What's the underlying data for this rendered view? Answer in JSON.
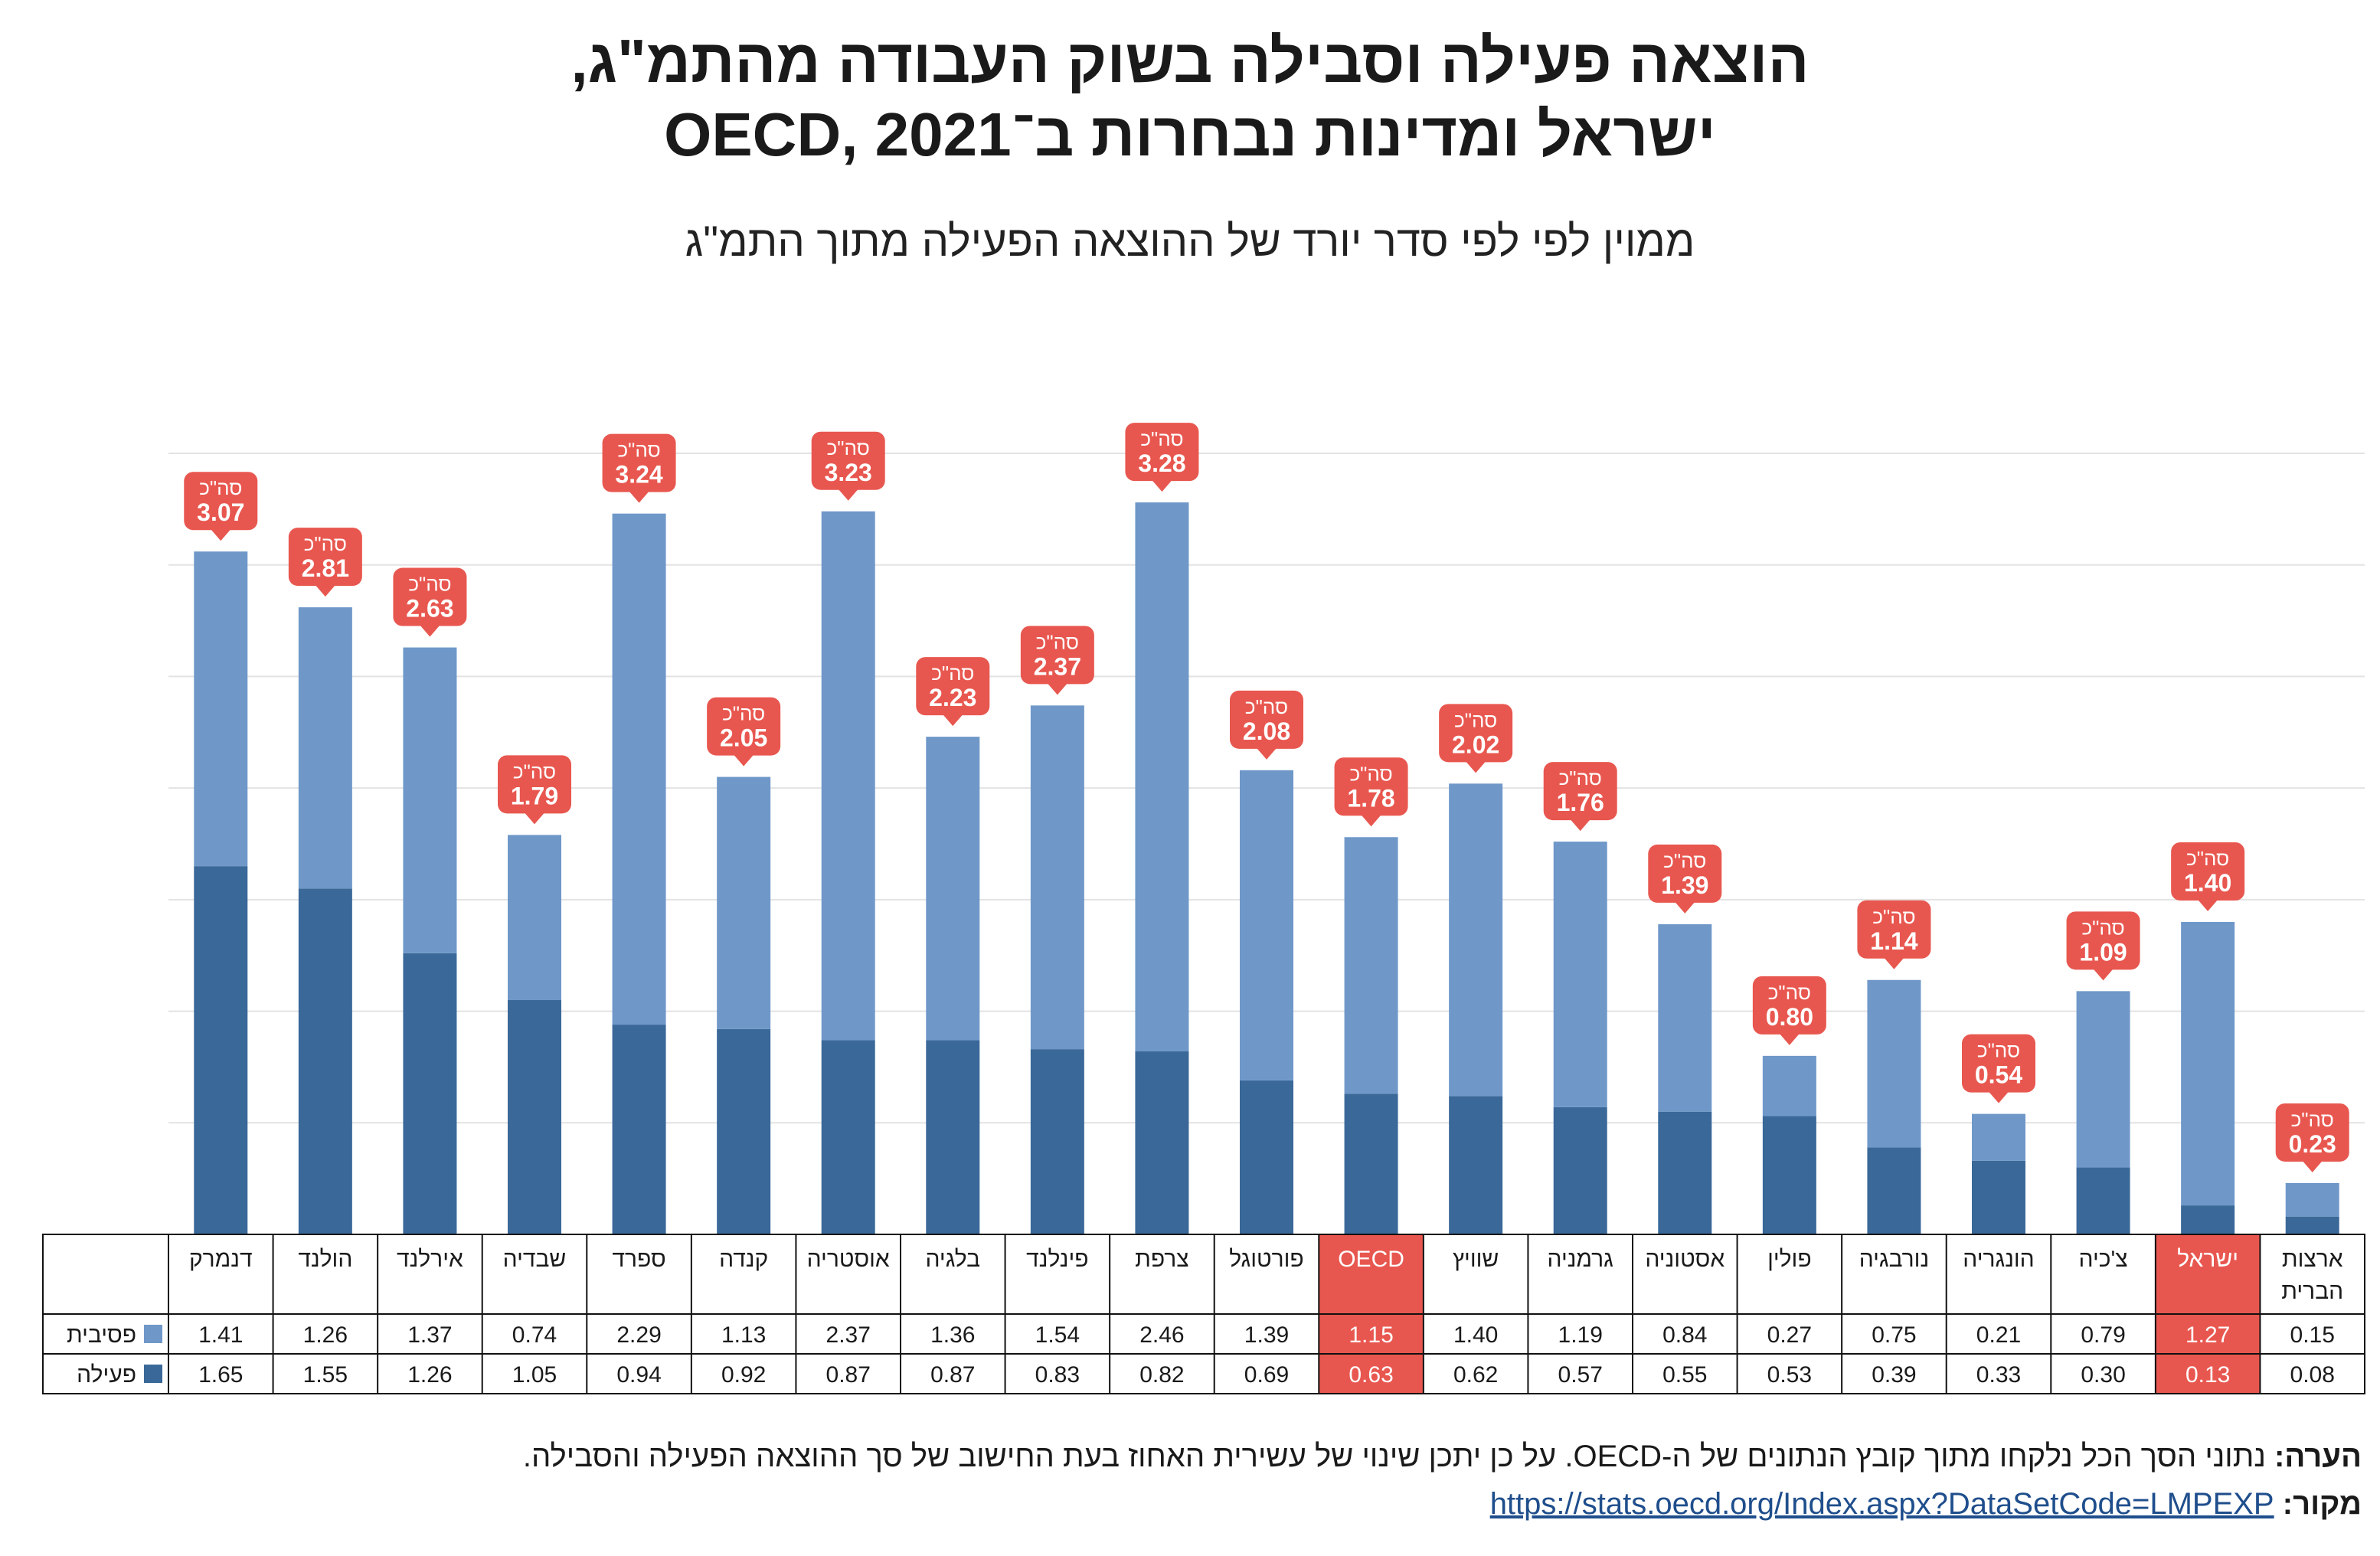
{
  "title_line1": "הוצאה פעילה וסבילה בשוק העבודה מהתמ\"ג,",
  "title_line2": "ישראל ומדינות נבחרות ב־OECD, 2021",
  "subtitle": "ממוין לפי לפי סדר יורד של ההוצאה הפעילה מתוך התמ\"ג",
  "total_label": "סה\"כ",
  "note": {
    "label": "הערה:",
    "text": "נתוני הסך הכל נלקחו מתוך קובץ הנתונים של ה-OECD. על כן יתכן שינוי של עשירית האחוז בעת החישוב של סך ההוצאה הפעילה והסבילה."
  },
  "source": {
    "label": "מקור:",
    "url": "https://stats.oecd.org/Index.aspx?DataSetCode=LMPEXP"
  },
  "colors": {
    "passive": "#6f98c9",
    "active": "#3a6899",
    "highlight": "#e8574f",
    "grid": "#e3e3e3",
    "border": "#111111"
  },
  "chart_data": {
    "type": "bar",
    "stacked": true,
    "ylim": [
      0,
      3.5
    ],
    "grid": true,
    "legend_placement": "table-rows",
    "categories": [
      "דנמרק",
      "הולנד",
      "אירלנד",
      "שבדיה",
      "ספרד",
      "קנדה",
      "אוסטריה",
      "בלגיה",
      "פינלנד",
      "צרפת",
      "פורטוגל",
      "OECD",
      "שוויץ",
      "גרמניה",
      "אסטוניה",
      "פולין",
      "נורבגיה",
      "הונגריה",
      "צ'כיה",
      "ישראל",
      "ארצות הברית"
    ],
    "highlight": [
      "OECD",
      "ישראל"
    ],
    "series": [
      {
        "name": "פסיבית",
        "values": [
          1.41,
          1.26,
          1.37,
          0.74,
          2.29,
          1.13,
          2.37,
          1.36,
          1.54,
          2.46,
          1.39,
          1.15,
          1.4,
          1.19,
          0.84,
          0.27,
          0.75,
          0.21,
          0.79,
          1.27,
          0.15
        ]
      },
      {
        "name": "פעילה",
        "values": [
          1.65,
          1.55,
          1.26,
          1.05,
          0.94,
          0.92,
          0.87,
          0.87,
          0.83,
          0.82,
          0.69,
          0.63,
          0.62,
          0.57,
          0.55,
          0.53,
          0.39,
          0.33,
          0.3,
          0.13,
          0.08
        ]
      }
    ],
    "totals": [
      "3.07",
      "2.81",
      "2.63",
      "1.79",
      "3.24",
      "2.05",
      "3.23",
      "2.23",
      "2.37",
      "3.28",
      "2.08",
      "1.78",
      "2.02",
      "1.76",
      "1.39",
      "0.80",
      "1.14",
      "0.54",
      "1.09",
      "1.40",
      "0.23"
    ]
  }
}
